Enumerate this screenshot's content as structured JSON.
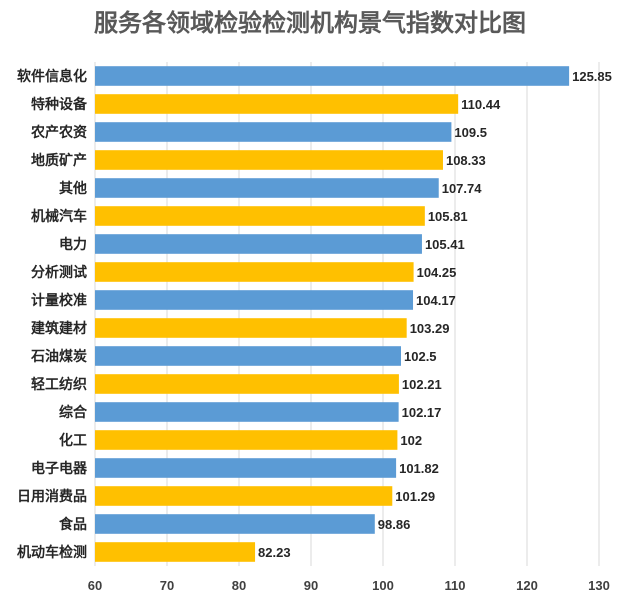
{
  "chart_data": {
    "type": "bar",
    "orientation": "horizontal",
    "title": "服务各领域检验检测机构景气指数对比图",
    "categories": [
      "软件信息化",
      "特种设备",
      "农产农资",
      "地质矿产",
      "其他",
      "机械汽车",
      "电力",
      "分析测试",
      "计量校准",
      "建筑建材",
      "石油煤炭",
      "轻工纺织",
      "综合",
      "化工",
      "电子电器",
      "日用消费品",
      "食品",
      "机动车检测"
    ],
    "values": [
      125.85,
      110.44,
      109.5,
      108.33,
      107.74,
      105.81,
      105.41,
      104.25,
      104.17,
      103.29,
      102.5,
      102.21,
      102.17,
      102,
      101.82,
      101.29,
      98.86,
      82.23
    ],
    "value_labels": [
      "125.85",
      "110.44",
      "109.5",
      "108.33",
      "107.74",
      "105.81",
      "105.41",
      "104.25",
      "104.17",
      "103.29",
      "102.5",
      "102.21",
      "102.17",
      "102",
      "101.82",
      "101.29",
      "98.86",
      "82.23"
    ],
    "xlim": [
      60,
      130
    ],
    "xticks": [
      60,
      70,
      80,
      90,
      100,
      110,
      120,
      130
    ],
    "grid": true,
    "bar_colors": [
      "#5b9bd5",
      "#ffc000"
    ]
  }
}
